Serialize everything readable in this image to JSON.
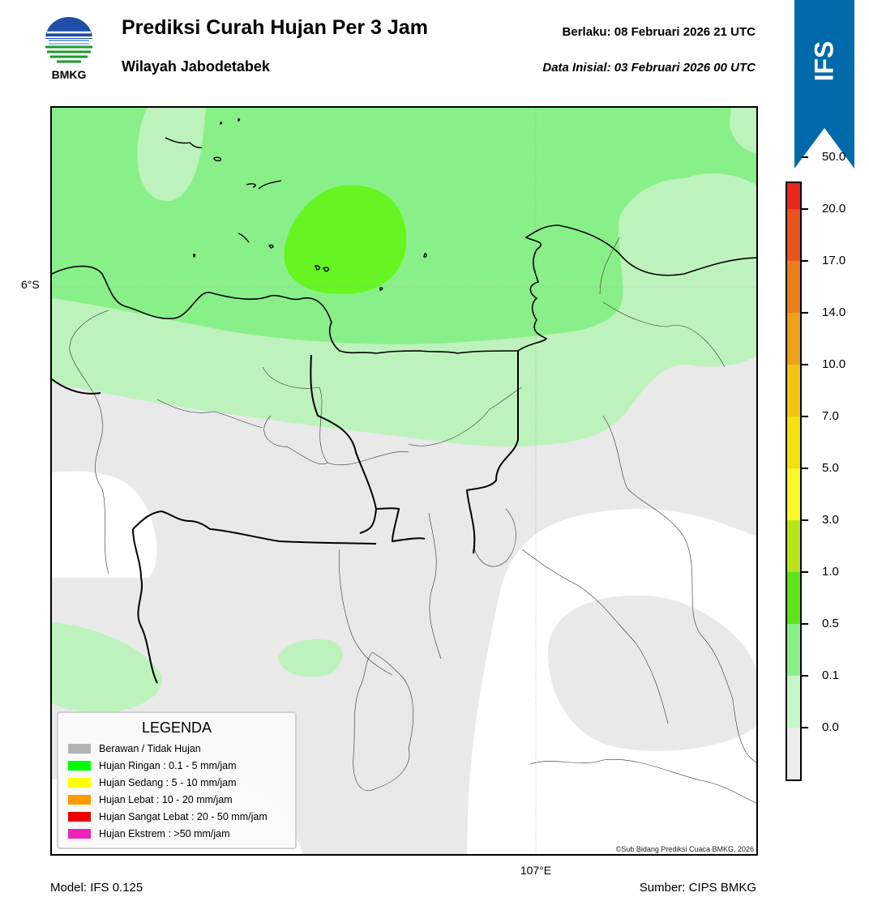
{
  "header": {
    "title": "Prediksi Curah Hujan Per 3 Jam",
    "subtitle": "Wilayah Jabodetabek",
    "valid_label": "Berlaku:  08 Februari 2026 21 UTC",
    "init_label": "Data Inisial:  03 Februari 2026 00 UTC",
    "logo_text": "BMKG",
    "banner_text": "IFS",
    "banner_color": "#0069aa"
  },
  "map": {
    "lat_label": "6°S",
    "lon_label": "107°E",
    "copyright": "©Sub Bidang Prediksi Cuaca BMKG, 2026",
    "colors": {
      "no_rain": "#e9e9e9",
      "very_light": "#bdf2bd",
      "light": "#89f089",
      "moderate": "#66f522",
      "clear": "#ffffff"
    }
  },
  "legend": {
    "title": "LEGENDA",
    "items": [
      {
        "label": "Berawan / Tidak Hujan",
        "color": "#b3b3b3"
      },
      {
        "label": "Hujan Ringan : 0.1 - 5 mm/jam",
        "color": "#00ff00"
      },
      {
        "label": "Hujan Sedang : 5 - 10 mm/jam",
        "color": "#ffff00"
      },
      {
        "label": "Hujan Lebat : 10 - 20 mm/jam",
        "color": "#ff9900"
      },
      {
        "label": "Hujan Sangat Lebat : 20 - 50 mm/jam",
        "color": "#ee0000"
      },
      {
        "label": "Hujan Ekstrem : >50 mm/jam",
        "color": "#ee22bb"
      }
    ]
  },
  "colorbar": {
    "colors": [
      "#ef2ac2",
      "#e8261c",
      "#e8541c",
      "#eb7f1a",
      "#eba11a",
      "#f2c412",
      "#f4e00c",
      "#f8f82a",
      "#b9e61a",
      "#5ce61a",
      "#89f089",
      "#c6f5c6",
      "#ececec"
    ],
    "ticks": [
      "50.0",
      "20.0",
      "17.0",
      "14.0",
      "10.0",
      "7.0",
      "5.0",
      "3.0",
      "1.0",
      "0.5",
      "0.1",
      "0.0"
    ]
  },
  "footer": {
    "model": "Model: IFS 0.125",
    "source": "Sumber: CIPS BMKG"
  }
}
